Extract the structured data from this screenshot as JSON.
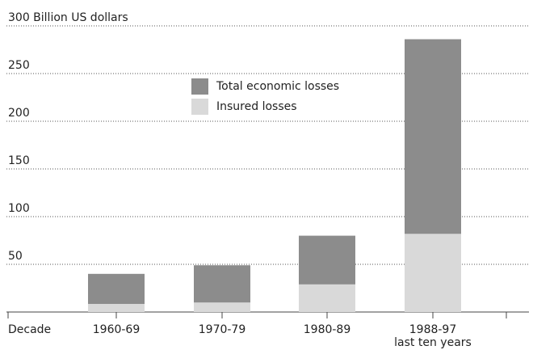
{
  "chart_data": {
    "type": "bar",
    "categories": [
      "1960-69",
      "1970-79",
      "1980-89",
      "1988-97\nlast ten years"
    ],
    "x_label": "Decade",
    "series": [
      {
        "name": "Total economic losses",
        "color": "#8c8c8c",
        "values": [
          40,
          49,
          80,
          286
        ]
      },
      {
        "name": "Insured losses",
        "color": "#d9d9d9",
        "values": [
          8.5,
          10,
          29,
          82
        ]
      }
    ],
    "ylim": [
      0,
      300
    ],
    "yticks": [
      50,
      100,
      150,
      200,
      250,
      {
        "value": 300,
        "label": "300 Billion US dollars"
      }
    ],
    "grid": true
  }
}
